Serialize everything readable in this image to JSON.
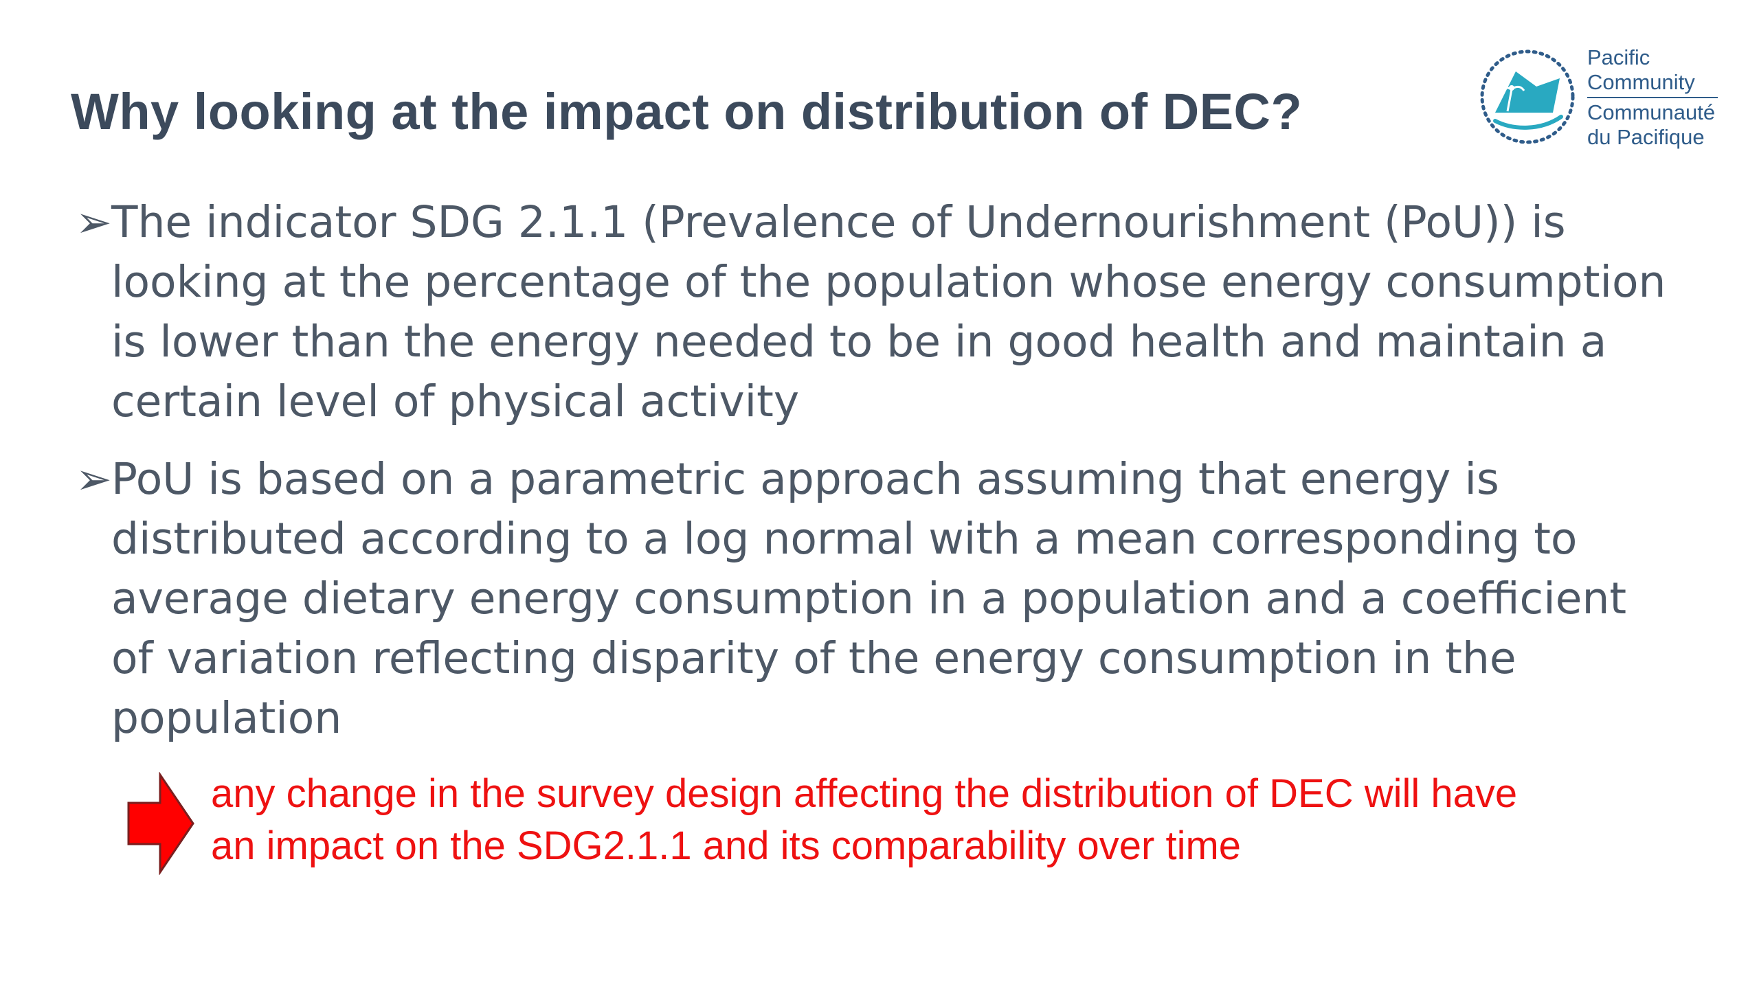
{
  "slide": {
    "title": "Why looking at the impact on distribution of DEC?",
    "logo": {
      "line1": "Pacific",
      "line2": "Community",
      "line3": "Communauté",
      "line4": "du Pacifique"
    },
    "bullets": [
      {
        "marker": "➢",
        "text": "The indicator SDG 2.1.1 (Prevalence of Undernourishment (PoU)) is looking at the percentage of the population whose energy consumption is lower than the energy needed to be in good health and maintain a certain level of physical activity"
      },
      {
        "marker": "➢",
        "text": "PoU is based on a parametric approach assuming that energy is distributed according to a log normal with a mean corresponding to average dietary energy consumption in a population and a coefficient of variation reflecting disparity of the energy consumption in the population"
      }
    ],
    "callout": {
      "line1": "any change in the survey design affecting the distribution of DEC will have",
      "line2": "an impact on the SDG2.1.1 and its comparability over time"
    },
    "colors": {
      "title": "#3c4a5c",
      "body": "#4d5866",
      "callout": "#ee1111",
      "arrow": "#ff0000",
      "logo_teal": "#29a9c1",
      "logo_text": "#2f5c8a"
    }
  }
}
